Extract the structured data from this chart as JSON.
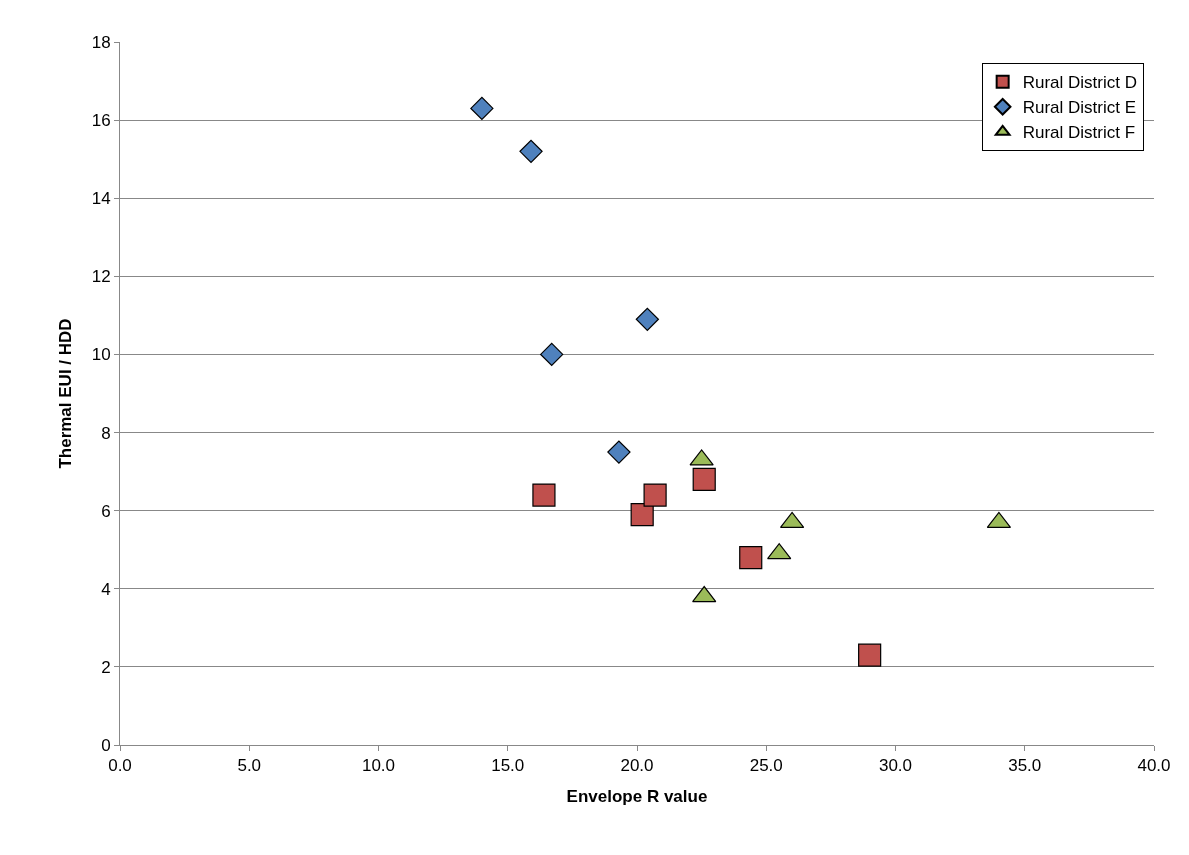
{
  "chart_data": {
    "type": "scatter",
    "xlabel": "Envelope R value",
    "ylabel": "Thermal EUI / HDD",
    "xlim": [
      0,
      40
    ],
    "xticks": [
      {
        "value": 0,
        "label": "0.0"
      },
      {
        "value": 5,
        "label": "5.0"
      },
      {
        "value": 10,
        "label": "10.0"
      },
      {
        "value": 15,
        "label": "15.0"
      },
      {
        "value": 20,
        "label": "20.0"
      },
      {
        "value": 25,
        "label": "25.0"
      },
      {
        "value": 30,
        "label": "30.0"
      },
      {
        "value": 35,
        "label": "35.0"
      },
      {
        "value": 40,
        "label": "40.0"
      }
    ],
    "ylim": [
      0,
      18
    ],
    "yticks": [
      0,
      2,
      4,
      6,
      8,
      10,
      12,
      14,
      16,
      18
    ],
    "grid": "y",
    "legend": "top right",
    "series": [
      {
        "name": "Rural District D",
        "color": "#c0504d",
        "marker": "square",
        "x": [
          16.4,
          20.2,
          20.7,
          22.6,
          24.4,
          29.0
        ],
        "values": [
          6.4,
          5.9,
          6.4,
          6.8,
          4.8,
          2.3
        ]
      },
      {
        "name": "Rural District E",
        "color": "#4f81bd",
        "marker": "diamond",
        "x": [
          14.0,
          15.9,
          16.7,
          20.4,
          19.3
        ],
        "values": [
          16.3,
          15.2,
          10.0,
          10.9,
          7.5
        ]
      },
      {
        "name": "Rural District F",
        "color": "#9bbb59",
        "marker": "triangle",
        "x": [
          22.5,
          22.6,
          25.5,
          26.0,
          34.0
        ],
        "values": [
          7.3,
          3.8,
          4.9,
          5.7,
          5.7
        ]
      }
    ]
  }
}
